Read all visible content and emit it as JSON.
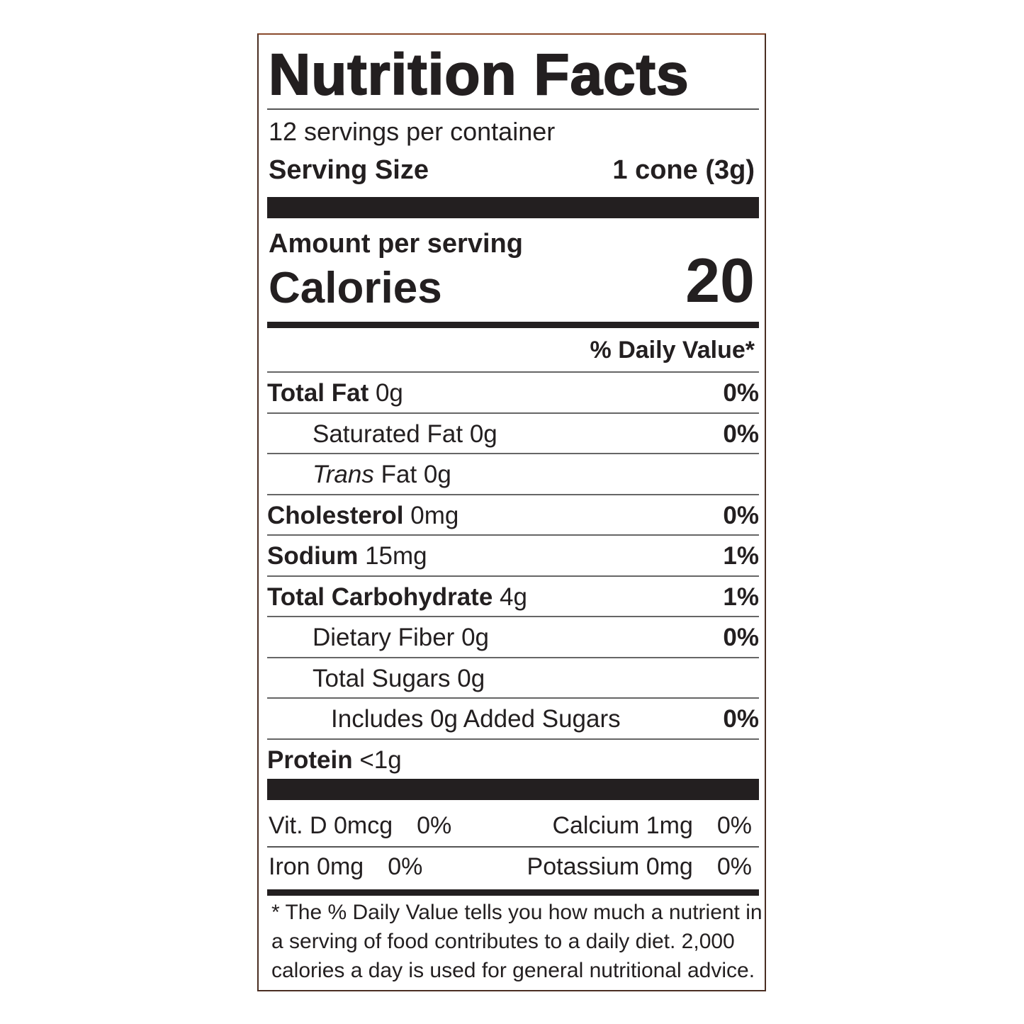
{
  "header": {
    "title": "Nutrition Facts",
    "servings": "12 servings per container",
    "serving_size_label": "Serving Size",
    "serving_size_value": "1 cone (3g)"
  },
  "calories": {
    "amount_label": "Amount per serving",
    "label": "Calories",
    "value": "20"
  },
  "daily_value_header": "% Daily Value*",
  "nutrients": [
    {
      "name": "Total Fat",
      "amount": "0g",
      "dv": "0%",
      "bold": true,
      "indent": 0
    },
    {
      "name": "Saturated Fat",
      "amount": "0g",
      "dv": "0%",
      "bold": false,
      "indent": 1
    },
    {
      "italic": "Trans",
      "name": "Fat",
      "amount": "0g",
      "bold": false,
      "indent": 1
    },
    {
      "name": "Cholesterol",
      "amount": "0mg",
      "dv": "0%",
      "bold": true,
      "indent": 0
    },
    {
      "name": "Sodium",
      "amount": "15mg",
      "dv": "1%",
      "bold": true,
      "indent": 0
    },
    {
      "name": "Total Carbohydrate",
      "amount": "4g",
      "dv": "1%",
      "bold": true,
      "indent": 0
    },
    {
      "name": "Dietary Fiber",
      "amount": "0g",
      "dv": "0%",
      "bold": false,
      "indent": 1
    },
    {
      "name": "Total Sugars",
      "amount": "0g",
      "bold": false,
      "indent": 1
    },
    {
      "name": "Includes 0g Added Sugars",
      "dv": "0%",
      "bold": false,
      "indent": 2
    },
    {
      "name": "Protein",
      "amount": "<1g",
      "bold": true,
      "indent": 0
    }
  ],
  "vitamins": [
    [
      {
        "label": "Vit. D 0mcg",
        "dv": "0%"
      },
      {
        "label": "Calcium 1mg",
        "dv": "0%"
      }
    ],
    [
      {
        "label": "Iron 0mg",
        "dv": "0%"
      },
      {
        "label": "Potassium 0mg",
        "dv": "0%"
      }
    ]
  ],
  "footnote": [
    "* The % Daily Value tells you how much a nutrient in",
    "a serving of food contributes to a daily diet. 2,000",
    "calories a day is used for general nutritional advice."
  ]
}
